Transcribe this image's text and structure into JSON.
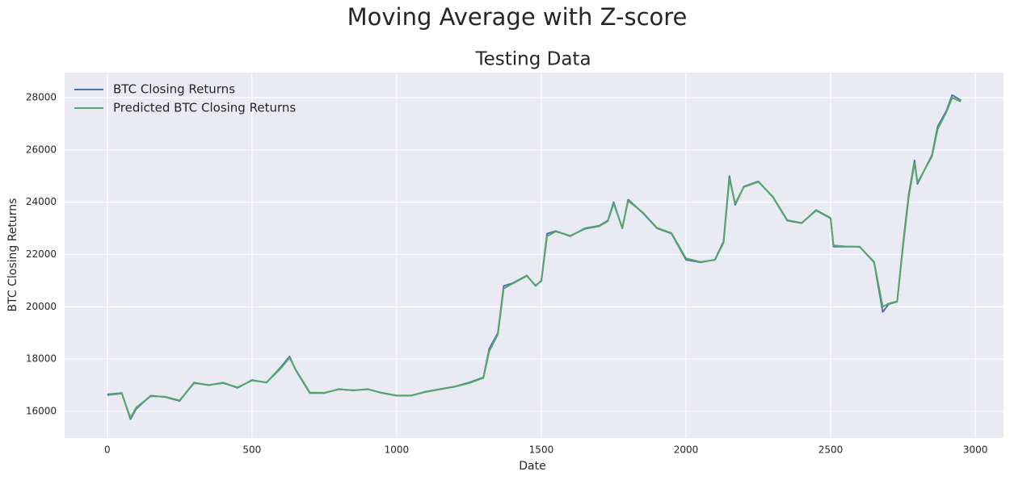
{
  "chart_data": {
    "type": "line",
    "title": "Moving Average with Z-score",
    "subtitle": "Testing Data",
    "x_label": "Date",
    "y_label": "BTC Closing Returns",
    "x": [
      0,
      50,
      80,
      100,
      150,
      200,
      250,
      300,
      350,
      400,
      450,
      500,
      550,
      600,
      630,
      650,
      700,
      750,
      800,
      850,
      900,
      950,
      1000,
      1050,
      1100,
      1150,
      1200,
      1250,
      1300,
      1320,
      1350,
      1370,
      1400,
      1450,
      1480,
      1500,
      1520,
      1550,
      1600,
      1650,
      1700,
      1730,
      1750,
      1780,
      1800,
      1850,
      1900,
      1950,
      2000,
      2050,
      2100,
      2130,
      2150,
      2170,
      2200,
      2250,
      2300,
      2350,
      2400,
      2450,
      2500,
      2510,
      2550,
      2600,
      2650,
      2680,
      2700,
      2730,
      2750,
      2770,
      2790,
      2800,
      2850,
      2870,
      2900,
      2920,
      2950
    ],
    "series": [
      {
        "name": "BTC Closing Returns",
        "color": "#4c72b0",
        "values": [
          16650,
          16700,
          15700,
          16100,
          16600,
          16550,
          16400,
          17100,
          17000,
          17100,
          16900,
          17200,
          17100,
          17700,
          18100,
          17600,
          16700,
          16700,
          16850,
          16800,
          16850,
          16700,
          16600,
          16600,
          16750,
          16850,
          16950,
          17100,
          17300,
          18400,
          19000,
          20800,
          20900,
          21200,
          20800,
          21000,
          22800,
          22900,
          22700,
          23000,
          23100,
          23300,
          24000,
          23000,
          24100,
          23600,
          23000,
          22800,
          21800,
          21700,
          21800,
          22500,
          25000,
          23900,
          24600,
          24800,
          24200,
          23300,
          23200,
          23700,
          23400,
          22300,
          22300,
          22300,
          21700,
          19800,
          20100,
          20200,
          22400,
          24300,
          25600,
          24700,
          25800,
          26900,
          27500,
          28100,
          27900
        ]
      },
      {
        "name": "Predicted BTC Closing Returns",
        "color": "#55a868",
        "values": [
          16620,
          16680,
          15750,
          16150,
          16580,
          16560,
          16420,
          17080,
          17010,
          17080,
          16920,
          17180,
          17110,
          17650,
          18050,
          17620,
          16720,
          16710,
          16840,
          16810,
          16840,
          16710,
          16610,
          16610,
          16740,
          16840,
          16940,
          17080,
          17280,
          18300,
          18950,
          20700,
          20880,
          21180,
          20820,
          20980,
          22700,
          22880,
          22720,
          22980,
          23080,
          23280,
          23950,
          23020,
          24050,
          23620,
          23020,
          22820,
          21850,
          21720,
          21790,
          22450,
          24900,
          23950,
          24580,
          24780,
          24220,
          23320,
          23210,
          23680,
          23380,
          22350,
          22310,
          22290,
          21720,
          20000,
          20120,
          20210,
          22300,
          24200,
          25500,
          24750,
          25750,
          26800,
          27450,
          28000,
          27850
        ]
      }
    ],
    "xlim": [
      -147.5,
      3097.5
    ],
    "ylim": [
      14980,
      28960
    ],
    "xticks": [
      0,
      500,
      1000,
      1500,
      2000,
      2500,
      3000
    ],
    "yticks": [
      16000,
      18000,
      20000,
      22000,
      24000,
      26000,
      28000
    ],
    "grid": true,
    "legend": "upper-left"
  }
}
